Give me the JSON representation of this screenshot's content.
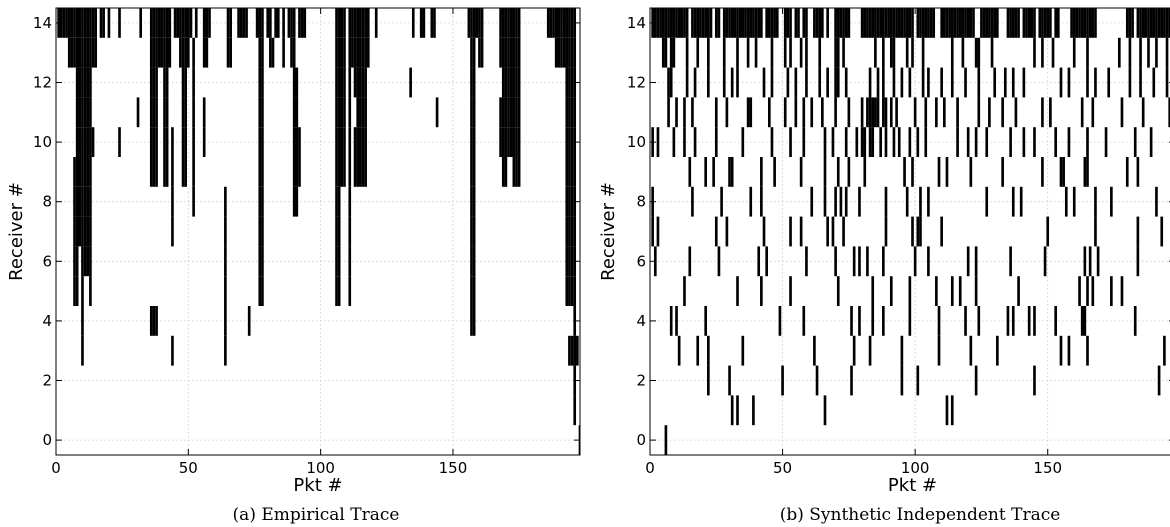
{
  "chart_data": [
    {
      "type": "event-raster",
      "caption": "(a) Empirical Trace",
      "xlabel": "Pkt #",
      "ylabel": "Receiver #",
      "xlim": [
        0,
        198
      ],
      "ylim": [
        -0.5,
        14.5
      ],
      "xticks": [
        0,
        50,
        100,
        150
      ],
      "yticks": [
        0,
        2,
        4,
        6,
        8,
        10,
        12,
        14
      ],
      "grid": true,
      "losses": {
        "14": [
          1,
          2,
          3,
          4,
          5,
          6,
          7,
          8,
          9,
          10,
          11,
          12,
          13,
          14,
          15,
          17,
          18,
          20,
          24,
          32,
          36,
          37,
          38,
          39,
          40,
          41,
          42,
          43,
          45,
          46,
          47,
          48,
          49,
          50,
          51,
          53,
          56,
          57,
          58,
          65,
          66,
          69,
          70,
          71,
          72,
          76,
          77,
          78,
          80,
          81,
          83,
          84,
          86,
          88,
          89,
          90,
          92,
          93,
          94,
          106,
          107,
          108,
          109,
          111,
          112,
          113,
          114,
          115,
          116,
          117,
          118,
          121,
          135,
          138,
          139,
          142,
          143,
          156,
          157,
          158,
          159,
          160,
          161,
          168,
          169,
          170,
          171,
          172,
          173,
          174,
          175,
          186,
          187,
          188,
          189,
          190,
          191,
          192,
          193,
          194,
          195,
          196
        ],
        "13": [
          5,
          6,
          7,
          8,
          9,
          10,
          11,
          12,
          13,
          14,
          15,
          36,
          37,
          38,
          39,
          40,
          41,
          42,
          43,
          47,
          48,
          49,
          50,
          52,
          56,
          57,
          65,
          66,
          77,
          78,
          81,
          82,
          86,
          89,
          90,
          106,
          107,
          108,
          109,
          111,
          112,
          113,
          114,
          115,
          116,
          117,
          118,
          157,
          158,
          160,
          161,
          168,
          169,
          170,
          171,
          172,
          173,
          174,
          175,
          189,
          190,
          191,
          192,
          193,
          194,
          195,
          196
        ],
        "12": [
          8,
          9,
          10,
          11,
          12,
          13,
          36,
          37,
          38,
          41,
          42,
          48,
          49,
          52,
          77,
          78,
          90,
          91,
          106,
          107,
          108,
          109,
          111,
          113,
          114,
          115,
          116,
          117,
          134,
          157,
          158,
          169,
          170,
          171,
          172,
          173,
          174,
          175,
          193,
          194,
          195,
          196
        ],
        "11": [
          8,
          9,
          10,
          11,
          12,
          13,
          31,
          36,
          37,
          38,
          41,
          42,
          48,
          49,
          52,
          56,
          77,
          78,
          90,
          91,
          106,
          107,
          108,
          109,
          111,
          114,
          115,
          116,
          117,
          144,
          157,
          158,
          168,
          169,
          170,
          171,
          172,
          173,
          174,
          175,
          193,
          194,
          195,
          196
        ],
        "10": [
          8,
          9,
          10,
          11,
          12,
          13,
          14,
          24,
          36,
          37,
          38,
          41,
          42,
          44,
          48,
          49,
          52,
          56,
          77,
          78,
          90,
          91,
          92,
          106,
          107,
          108,
          109,
          111,
          113,
          114,
          115,
          116,
          117,
          157,
          158,
          168,
          169,
          170,
          171,
          172,
          173,
          174,
          175,
          193,
          194,
          195,
          196
        ],
        "9": [
          7,
          8,
          9,
          10,
          11,
          12,
          13,
          36,
          37,
          38,
          41,
          42,
          44,
          48,
          49,
          52,
          77,
          78,
          90,
          91,
          92,
          106,
          107,
          108,
          109,
          111,
          113,
          114,
          115,
          116,
          117,
          157,
          158,
          169,
          170,
          173,
          174,
          175,
          193,
          194,
          195,
          196
        ],
        "8": [
          7,
          8,
          9,
          10,
          11,
          12,
          13,
          44,
          52,
          64,
          77,
          78,
          90,
          91,
          106,
          107,
          111,
          157,
          158,
          193,
          194,
          195,
          196
        ],
        "7": [
          7,
          8,
          9,
          10,
          11,
          12,
          13,
          44,
          64,
          77,
          78,
          106,
          107,
          111,
          157,
          158,
          193,
          194,
          195,
          196
        ],
        "6": [
          7,
          8,
          10,
          11,
          12,
          13,
          64,
          77,
          78,
          106,
          107,
          111,
          157,
          158,
          193,
          194,
          195,
          196
        ],
        "5": [
          7,
          8,
          10,
          13,
          64,
          77,
          78,
          106,
          107,
          111,
          157,
          158,
          193,
          194,
          195,
          196
        ],
        "4": [
          10,
          36,
          37,
          38,
          64,
          73,
          157,
          158,
          196
        ],
        "3": [
          10,
          44,
          64,
          194,
          195,
          196,
          197
        ],
        "2": [
          196
        ],
        "1": [
          196
        ],
        "0": [
          198
        ]
      }
    },
    {
      "type": "event-raster",
      "caption": "(b) Synthetic Independent Trace",
      "xlabel": "Pkt #",
      "ylabel": "Receiver #",
      "xlim": [
        0,
        198
      ],
      "ylim": [
        -0.5,
        14.5
      ],
      "xticks": [
        0,
        50,
        100,
        150
      ],
      "yticks": [
        0,
        2,
        4,
        6,
        8,
        10,
        12,
        14
      ],
      "grid": true,
      "losses": {
        "14": [
          1,
          2,
          3,
          4,
          5,
          6,
          7,
          8,
          9,
          10,
          11,
          12,
          13,
          14,
          16,
          17,
          18,
          19,
          20,
          21,
          22,
          23,
          25,
          26,
          28,
          29,
          30,
          31,
          32,
          33,
          34,
          35,
          36,
          37,
          38,
          39,
          40,
          41,
          42,
          44,
          45,
          46,
          47,
          48,
          51,
          52,
          53,
          55,
          56,
          58,
          59,
          62,
          63,
          64,
          65,
          67,
          70,
          71,
          72,
          73,
          74,
          75,
          80,
          81,
          82,
          83,
          84,
          85,
          86,
          87,
          88,
          89,
          90,
          91,
          92,
          93,
          94,
          95,
          96,
          97,
          98,
          99,
          101,
          102,
          103,
          104,
          105,
          106,
          107,
          110,
          111,
          112,
          113,
          114,
          115,
          116,
          117,
          118,
          119,
          120,
          121,
          122,
          125,
          126,
          127,
          128,
          129,
          130,
          131,
          135,
          136,
          137,
          138,
          139,
          141,
          142,
          143,
          144,
          145,
          147,
          148,
          149,
          150,
          151,
          153,
          154,
          159,
          160,
          161,
          162,
          163,
          164,
          165,
          166,
          167,
          168,
          180,
          181,
          182,
          184,
          185,
          186,
          187,
          188,
          189,
          190,
          191,
          192,
          193,
          194,
          195,
          196,
          197
        ],
        "13": [
          5,
          6,
          8,
          9,
          14,
          18,
          22,
          28,
          33,
          37,
          40,
          46,
          51,
          53,
          57,
          59,
          64,
          70,
          71,
          73,
          85,
          88,
          91,
          92,
          97,
          99,
          103,
          114,
          118,
          123,
          124,
          129,
          145,
          148,
          152,
          160,
          165,
          177,
          181,
          185,
          188,
          191,
          195,
          198
        ],
        "12": [
          7,
          8,
          14,
          17,
          22,
          28,
          31,
          33,
          43,
          46,
          52,
          55,
          59,
          64,
          67,
          70,
          71,
          74,
          83,
          86,
          88,
          92,
          95,
          98,
          103,
          105,
          110,
          114,
          119,
          124,
          130,
          134,
          137,
          141,
          155,
          158,
          165,
          168,
          173,
          181,
          185,
          190,
          195,
          197
        ],
        "11": [
          7,
          10,
          13,
          16,
          25,
          29,
          37,
          38,
          45,
          51,
          55,
          58,
          61,
          65,
          70,
          75,
          80,
          82,
          83,
          84,
          85,
          86,
          88,
          89,
          91,
          93,
          100,
          104,
          108,
          111,
          116,
          124,
          128,
          133,
          138,
          148,
          151,
          163,
          167,
          178,
          186,
          196
        ],
        "10": [
          1,
          3,
          9,
          13,
          17,
          25,
          35,
          46,
          53,
          58,
          66,
          69,
          74,
          78,
          80,
          81,
          83,
          84,
          87,
          89,
          92,
          94,
          98,
          101,
          104,
          116,
          120,
          123,
          127,
          136,
          141,
          145,
          153,
          158,
          165,
          172,
          183,
          189
        ],
        "9": [
          15,
          21,
          24,
          30,
          31,
          42,
          47,
          57,
          66,
          71,
          75,
          81,
          96,
          99,
          109,
          112,
          121,
          133,
          148,
          155,
          156,
          164,
          165,
          180,
          184
        ],
        "8": [
          1,
          16,
          27,
          38,
          42,
          61,
          66,
          70,
          72,
          74,
          79,
          89,
          97,
          102,
          105,
          127,
          137,
          140,
          157,
          160,
          168,
          174,
          191
        ],
        "7": [
          1,
          3,
          25,
          29,
          43,
          53,
          57,
          67,
          69,
          73,
          89,
          99,
          101,
          102,
          110,
          150,
          168,
          184,
          193
        ],
        "6": [
          2,
          15,
          26,
          41,
          44,
          59,
          70,
          77,
          79,
          82,
          88,
          100,
          105,
          120,
          123,
          136,
          149,
          164,
          166,
          169,
          184,
          198
        ],
        "5": [
          13,
          33,
          42,
          53,
          71,
          84,
          91,
          98,
          108,
          114,
          117,
          123,
          139,
          162,
          165,
          167,
          174,
          178,
          199
        ],
        "4": [
          8,
          10,
          21,
          49,
          58,
          76,
          79,
          84,
          88,
          98,
          109,
          119,
          124,
          135,
          137,
          143,
          145,
          153,
          163,
          164,
          183
        ],
        "3": [
          11,
          18,
          22,
          35,
          62,
          77,
          83,
          95,
          109,
          121,
          131,
          155,
          158,
          165,
          194
        ],
        "2": [
          22,
          30,
          50,
          63,
          76,
          95,
          101,
          123,
          145,
          192
        ],
        "1": [
          31,
          33,
          39,
          66,
          112,
          114
        ],
        "0": [
          6
        ]
      }
    }
  ]
}
